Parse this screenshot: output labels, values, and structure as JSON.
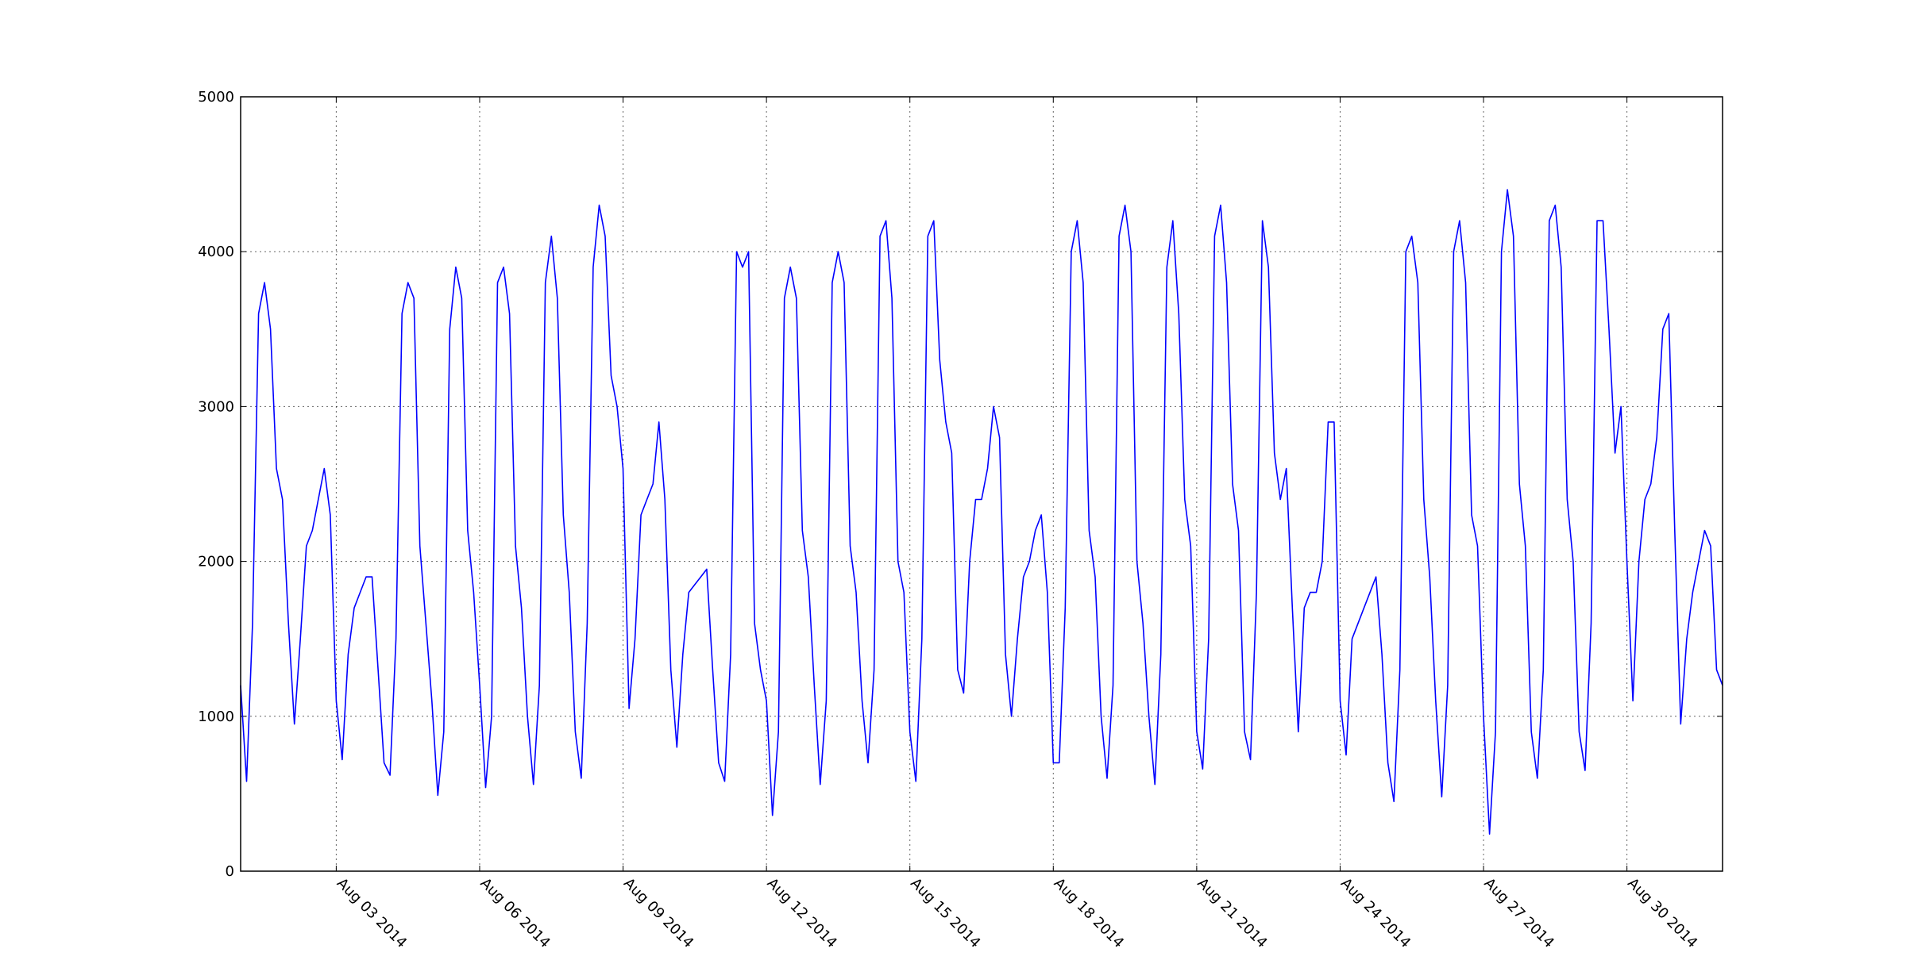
{
  "chart_data": {
    "type": "line",
    "x": [
      "2014-08-01T00:00",
      "2014-08-01T03:00",
      "2014-08-01T06:00",
      "2014-08-01T09:00",
      "2014-08-01T12:00",
      "2014-08-01T15:00",
      "2014-08-01T18:00",
      "2014-08-01T21:00",
      "2014-08-02T00:00",
      "2014-08-02T03:00",
      "2014-08-02T06:00",
      "2014-08-02T09:00",
      "2014-08-02T12:00",
      "2014-08-02T15:00",
      "2014-08-02T18:00",
      "2014-08-02T21:00",
      "2014-08-03T00:00",
      "2014-08-03T03:00",
      "2014-08-03T06:00",
      "2014-08-03T09:00",
      "2014-08-03T12:00",
      "2014-08-03T15:00",
      "2014-08-03T18:00",
      "2014-08-03T21:00",
      "2014-08-04T00:00",
      "2014-08-04T03:00",
      "2014-08-04T06:00",
      "2014-08-04T09:00",
      "2014-08-04T12:00",
      "2014-08-04T15:00",
      "2014-08-04T18:00",
      "2014-08-04T21:00",
      "2014-08-05T00:00",
      "2014-08-05T03:00",
      "2014-08-05T06:00",
      "2014-08-05T09:00",
      "2014-08-05T12:00",
      "2014-08-05T15:00",
      "2014-08-05T18:00",
      "2014-08-05T21:00",
      "2014-08-06T00:00",
      "2014-08-06T03:00",
      "2014-08-06T06:00",
      "2014-08-06T09:00",
      "2014-08-06T12:00",
      "2014-08-06T15:00",
      "2014-08-06T18:00",
      "2014-08-06T21:00",
      "2014-08-07T00:00",
      "2014-08-07T03:00",
      "2014-08-07T06:00",
      "2014-08-07T09:00",
      "2014-08-07T12:00",
      "2014-08-07T15:00",
      "2014-08-07T18:00",
      "2014-08-07T21:00",
      "2014-08-08T00:00",
      "2014-08-08T03:00",
      "2014-08-08T06:00",
      "2014-08-08T09:00",
      "2014-08-08T12:00",
      "2014-08-08T15:00",
      "2014-08-08T18:00",
      "2014-08-08T21:00",
      "2014-08-09T00:00",
      "2014-08-09T03:00",
      "2014-08-09T06:00",
      "2014-08-09T09:00",
      "2014-08-09T12:00",
      "2014-08-09T15:00",
      "2014-08-09T18:00",
      "2014-08-09T21:00",
      "2014-08-10T00:00",
      "2014-08-10T03:00",
      "2014-08-10T06:00",
      "2014-08-10T09:00",
      "2014-08-10T12:00",
      "2014-08-10T15:00",
      "2014-08-10T18:00",
      "2014-08-10T21:00",
      "2014-08-11T00:00",
      "2014-08-11T03:00",
      "2014-08-11T06:00",
      "2014-08-11T09:00",
      "2014-08-11T12:00",
      "2014-08-11T15:00",
      "2014-08-11T18:00",
      "2014-08-11T21:00",
      "2014-08-12T00:00",
      "2014-08-12T03:00",
      "2014-08-12T06:00",
      "2014-08-12T09:00",
      "2014-08-12T12:00",
      "2014-08-12T15:00",
      "2014-08-12T18:00",
      "2014-08-12T21:00",
      "2014-08-13T00:00",
      "2014-08-13T03:00",
      "2014-08-13T06:00",
      "2014-08-13T09:00",
      "2014-08-13T12:00",
      "2014-08-13T15:00",
      "2014-08-13T18:00",
      "2014-08-13T21:00",
      "2014-08-14T00:00",
      "2014-08-14T03:00",
      "2014-08-14T06:00",
      "2014-08-14T09:00",
      "2014-08-14T12:00",
      "2014-08-14T15:00",
      "2014-08-14T18:00",
      "2014-08-14T21:00",
      "2014-08-15T00:00",
      "2014-08-15T03:00",
      "2014-08-15T06:00",
      "2014-08-15T09:00",
      "2014-08-15T12:00",
      "2014-08-15T15:00",
      "2014-08-15T18:00",
      "2014-08-15T21:00",
      "2014-08-16T00:00",
      "2014-08-16T03:00",
      "2014-08-16T06:00",
      "2014-08-16T09:00",
      "2014-08-16T12:00",
      "2014-08-16T15:00",
      "2014-08-16T18:00",
      "2014-08-16T21:00",
      "2014-08-17T00:00",
      "2014-08-17T03:00",
      "2014-08-17T06:00",
      "2014-08-17T09:00",
      "2014-08-17T12:00",
      "2014-08-17T15:00",
      "2014-08-17T18:00",
      "2014-08-17T21:00",
      "2014-08-18T00:00",
      "2014-08-18T03:00",
      "2014-08-18T06:00",
      "2014-08-18T09:00",
      "2014-08-18T12:00",
      "2014-08-18T15:00",
      "2014-08-18T18:00",
      "2014-08-18T21:00",
      "2014-08-19T00:00",
      "2014-08-19T03:00",
      "2014-08-19T06:00",
      "2014-08-19T09:00",
      "2014-08-19T12:00",
      "2014-08-19T15:00",
      "2014-08-19T18:00",
      "2014-08-19T21:00",
      "2014-08-20T00:00",
      "2014-08-20T03:00",
      "2014-08-20T06:00",
      "2014-08-20T09:00",
      "2014-08-20T12:00",
      "2014-08-20T15:00",
      "2014-08-20T18:00",
      "2014-08-20T21:00",
      "2014-08-21T00:00",
      "2014-08-21T03:00",
      "2014-08-21T06:00",
      "2014-08-21T09:00",
      "2014-08-21T12:00",
      "2014-08-21T15:00",
      "2014-08-21T18:00",
      "2014-08-21T21:00",
      "2014-08-22T00:00",
      "2014-08-22T03:00",
      "2014-08-22T06:00",
      "2014-08-22T09:00",
      "2014-08-22T12:00",
      "2014-08-22T15:00",
      "2014-08-22T18:00",
      "2014-08-22T21:00",
      "2014-08-23T00:00",
      "2014-08-23T03:00",
      "2014-08-23T06:00",
      "2014-08-23T09:00",
      "2014-08-23T12:00",
      "2014-08-23T15:00",
      "2014-08-23T18:00",
      "2014-08-23T21:00",
      "2014-08-24T00:00",
      "2014-08-24T03:00",
      "2014-08-24T06:00",
      "2014-08-24T09:00",
      "2014-08-24T12:00",
      "2014-08-24T15:00",
      "2014-08-24T18:00",
      "2014-08-24T21:00",
      "2014-08-25T00:00",
      "2014-08-25T03:00",
      "2014-08-25T06:00",
      "2014-08-25T09:00",
      "2014-08-25T12:00",
      "2014-08-25T15:00",
      "2014-08-25T18:00",
      "2014-08-25T21:00",
      "2014-08-26T00:00",
      "2014-08-26T03:00",
      "2014-08-26T06:00",
      "2014-08-26T09:00",
      "2014-08-26T12:00",
      "2014-08-26T15:00",
      "2014-08-26T18:00",
      "2014-08-26T21:00",
      "2014-08-27T00:00",
      "2014-08-27T03:00",
      "2014-08-27T06:00",
      "2014-08-27T09:00",
      "2014-08-27T12:00",
      "2014-08-27T15:00",
      "2014-08-27T18:00",
      "2014-08-27T21:00",
      "2014-08-28T00:00",
      "2014-08-28T03:00",
      "2014-08-28T06:00",
      "2014-08-28T09:00",
      "2014-08-28T12:00",
      "2014-08-28T15:00",
      "2014-08-28T18:00",
      "2014-08-28T21:00",
      "2014-08-29T00:00",
      "2014-08-29T03:00",
      "2014-08-29T06:00",
      "2014-08-29T09:00",
      "2014-08-29T12:00",
      "2014-08-29T15:00",
      "2014-08-29T18:00",
      "2014-08-29T21:00",
      "2014-08-30T00:00",
      "2014-08-30T03:00",
      "2014-08-30T06:00",
      "2014-08-30T09:00",
      "2014-08-30T12:00",
      "2014-08-30T15:00",
      "2014-08-30T18:00",
      "2014-08-30T21:00",
      "2014-08-31T00:00",
      "2014-08-31T03:00",
      "2014-08-31T06:00",
      "2014-08-31T09:00",
      "2014-08-31T12:00",
      "2014-08-31T15:00",
      "2014-08-31T18:00",
      "2014-08-31T21:00",
      "2014-09-01T00:00"
    ],
    "series": [
      {
        "color": "#0000ff",
        "values": [
          1200,
          580,
          1600,
          3600,
          3800,
          3500,
          2600,
          2400,
          1600,
          950,
          1500,
          2100,
          2200,
          2400,
          2600,
          2300,
          1100,
          720,
          1400,
          1700,
          1800,
          1900,
          1900,
          1300,
          700,
          620,
          1500,
          3600,
          3800,
          3700,
          2100,
          1600,
          1100,
          490,
          900,
          3500,
          3900,
          3700,
          2200,
          1800,
          1200,
          540,
          1000,
          3800,
          3900,
          3600,
          2100,
          1700,
          1000,
          560,
          1200,
          3800,
          4100,
          3700,
          2300,
          1800,
          900,
          600,
          1600,
          3900,
          4300,
          4100,
          3200,
          3000,
          2600,
          1050,
          1500,
          2300,
          2400,
          2500,
          2900,
          2400,
          1300,
          800,
          1400,
          1800,
          1850,
          1900,
          1950,
          1300,
          700,
          580,
          1400,
          4000,
          3900,
          4000,
          1600,
          1300,
          1100,
          360,
          900,
          3700,
          3900,
          3700,
          2200,
          1900,
          1200,
          560,
          1100,
          3800,
          4000,
          3800,
          2100,
          1800,
          1100,
          700,
          1300,
          4100,
          4200,
          3700,
          2000,
          1800,
          900,
          580,
          1500,
          4100,
          4200,
          3300,
          2900,
          2700,
          1300,
          1150,
          2000,
          2400,
          2400,
          2600,
          3000,
          2800,
          1400,
          1000,
          1500,
          1900,
          2000,
          2200,
          2300,
          1800,
          700,
          700,
          1700,
          4000,
          4200,
          3800,
          2200,
          1900,
          1000,
          600,
          1200,
          4100,
          4300,
          4000,
          2000,
          1600,
          1000,
          560,
          1400,
          3900,
          4200,
          3600,
          2400,
          2100,
          900,
          660,
          1500,
          4100,
          4300,
          3800,
          2500,
          2200,
          900,
          720,
          1800,
          4200,
          3900,
          2700,
          2400,
          2600,
          1700,
          900,
          1700,
          1800,
          1800,
          2000,
          2900,
          2900,
          1100,
          750,
          1500,
          1600,
          1700,
          1800,
          1900,
          1400,
          700,
          450,
          1300,
          4000,
          4100,
          3800,
          2400,
          1900,
          1100,
          480,
          1200,
          4000,
          4200,
          3800,
          2300,
          2100,
          1000,
          240,
          900,
          4000,
          4400,
          4100,
          2500,
          2100,
          900,
          600,
          1300,
          4200,
          4300,
          3900,
          2400,
          2000,
          900,
          650,
          1600,
          4200,
          4200,
          3500,
          2700,
          3000,
          2000,
          1100,
          2000,
          2400,
          2500,
          2800,
          3500,
          3600,
          2200,
          950,
          1500,
          1800,
          2000,
          2200,
          2100,
          1300,
          1200
        ]
      }
    ],
    "xlim": [
      "2014-08-01T00:00",
      "2014-09-01T00:00"
    ],
    "xticks": [
      {
        "value": "2014-08-03T00:00",
        "label": "Aug 03 2014"
      },
      {
        "value": "2014-08-06T00:00",
        "label": "Aug 06 2014"
      },
      {
        "value": "2014-08-09T00:00",
        "label": "Aug 09 2014"
      },
      {
        "value": "2014-08-12T00:00",
        "label": "Aug 12 2014"
      },
      {
        "value": "2014-08-15T00:00",
        "label": "Aug 15 2014"
      },
      {
        "value": "2014-08-18T00:00",
        "label": "Aug 18 2014"
      },
      {
        "value": "2014-08-21T00:00",
        "label": "Aug 21 2014"
      },
      {
        "value": "2014-08-24T00:00",
        "label": "Aug 24 2014"
      },
      {
        "value": "2014-08-27T00:00",
        "label": "Aug 27 2014"
      },
      {
        "value": "2014-08-30T00:00",
        "label": "Aug 30 2014"
      }
    ],
    "ylim": [
      0,
      5000
    ],
    "yticks": [
      0,
      1000,
      2000,
      3000,
      4000,
      5000
    ],
    "grid": true
  }
}
